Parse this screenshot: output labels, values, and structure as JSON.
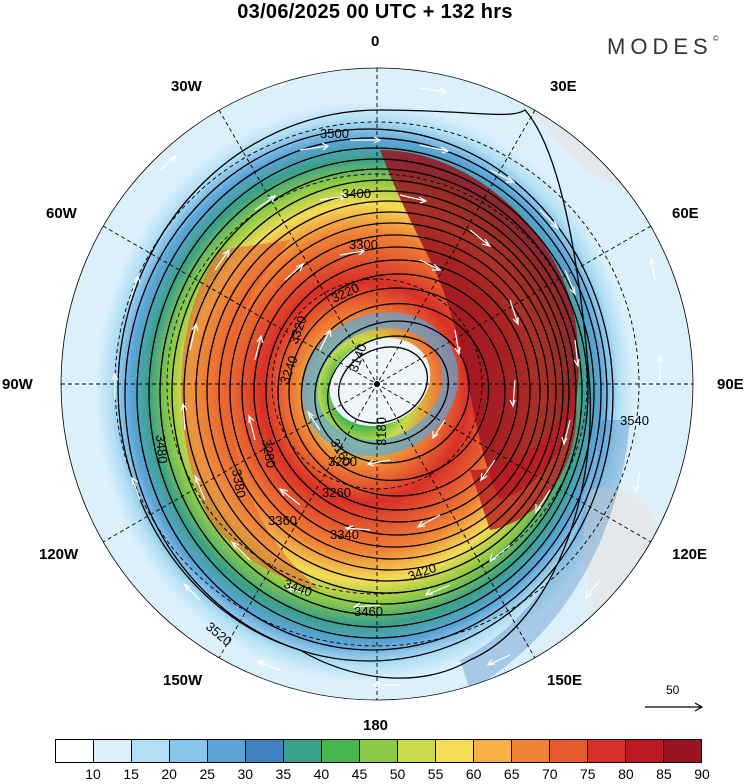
{
  "title": "03/06/2025  00 UTC  + 132 hrs",
  "brand": "MODES",
  "brand_mark": "©",
  "map": {
    "projection": "polar stereographic, south pole centered",
    "lon_labels": {
      "lon_0": "0",
      "lon_30e": "30E",
      "lon_60e": "60E",
      "lon_90e": "90E",
      "lon_120e": "120E",
      "lon_150e": "150E",
      "lon_180": "180",
      "lon_150w": "150W",
      "lon_120w": "120W",
      "lon_90w": "90W",
      "lon_60w": "60W",
      "lon_30w": "30W"
    },
    "contour_labels": {
      "c3140": "3140",
      "c3160": "3160",
      "c3180": "3180",
      "c3200": "3200",
      "c3220": "3220",
      "c3240": "3240",
      "c3260": "3260",
      "c3280": "3280",
      "c3300": "3300",
      "c3320": "3320",
      "c3340": "3340",
      "c3360": "3360",
      "c3380": "3380",
      "c3400": "3400",
      "c3420": "3420",
      "c3440": "3440",
      "c3460": "3460",
      "c3480": "3480",
      "c3500": "3500",
      "c3520": "3520",
      "c3540": "3540"
    },
    "reference_vector": "50"
  },
  "colorbar": {
    "ticks": [
      "10",
      "15",
      "20",
      "25",
      "30",
      "35",
      "40",
      "45",
      "50",
      "55",
      "60",
      "65",
      "70",
      "75",
      "80",
      "85",
      "90"
    ],
    "colors": [
      "#ffffff",
      "#dcf0fb",
      "#b2dff5",
      "#86c6ea",
      "#5ca4d8",
      "#3f82bf",
      "#3aa089",
      "#46b74c",
      "#8cca45",
      "#c8db4a",
      "#f4dc55",
      "#f6b046",
      "#f08236",
      "#e65a2d",
      "#d83028",
      "#bb1a22",
      "#9a1320"
    ]
  }
}
